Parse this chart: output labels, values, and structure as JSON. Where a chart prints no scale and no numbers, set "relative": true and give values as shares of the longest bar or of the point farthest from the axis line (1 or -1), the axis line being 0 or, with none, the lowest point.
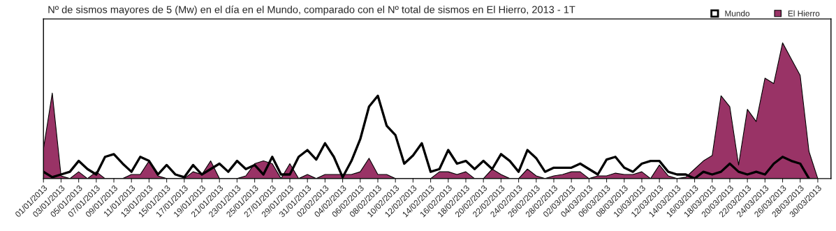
{
  "chart_data": {
    "type": "area",
    "title": "Nº de sismos mayores de 5 (Mw) en el día en el Mundo, comparado con el Nº total de sismos en El Hierro, 2013 - 1T",
    "relative": true,
    "legend": "top right",
    "grid": false,
    "categories": [
      "01/01/2013",
      null,
      "03/01/2013",
      null,
      "05/01/2013",
      null,
      "07/01/2013",
      null,
      "09/01/2013",
      null,
      "11/01/2013",
      null,
      "13/01/2013",
      null,
      "15/01/2013",
      null,
      "17/01/2013",
      null,
      "19/01/2013",
      null,
      "21/01/2013",
      null,
      "23/01/2013",
      null,
      "25/01/2013",
      null,
      "27/01/2013",
      null,
      "29/01/2013",
      null,
      "31/01/2013",
      null,
      "02/02/2013",
      null,
      "04/02/2013",
      null,
      "06/02/2013",
      null,
      "08/02/2013",
      null,
      "10/02/2013",
      null,
      "12/02/2013",
      null,
      "14/02/2013",
      null,
      "16/02/2013",
      null,
      "18/02/2013",
      null,
      "20/02/2013",
      null,
      "22/02/2013",
      null,
      "24/02/2013",
      null,
      "26/02/2013",
      null,
      "28/02/2013",
      null,
      "02/03/2013",
      null,
      "04/03/2013",
      null,
      "06/03/2013",
      null,
      "08/03/2013",
      null,
      "10/03/2013",
      null,
      "12/03/2013",
      null,
      "14/03/2013",
      null,
      "16/03/2013",
      null,
      "18/03/2013",
      null,
      "20/03/2013",
      null,
      "22/03/2013",
      null,
      "24/03/2013",
      null,
      "26/03/2013",
      null,
      "28/03/2013",
      null,
      "30/03/2013",
      null
    ],
    "series": [
      {
        "name": "El Hierro",
        "color": "#993366",
        "values": [
          0.22,
          0.63,
          0.02,
          0,
          0.05,
          0,
          0.05,
          0,
          0,
          0,
          0.03,
          0.03,
          0.13,
          0.02,
          0,
          0,
          0,
          0.05,
          0.03,
          0.13,
          0,
          0,
          0,
          0.02,
          0.11,
          0.13,
          0.11,
          0,
          0.11,
          0,
          0.03,
          0,
          0.03,
          0.03,
          0.03,
          0.03,
          0.05,
          0.15,
          0.03,
          0.03,
          0,
          0,
          0,
          0,
          0,
          0.05,
          0.05,
          0.03,
          0.05,
          0,
          0,
          0.07,
          0.03,
          0,
          0,
          0.07,
          0.02,
          0,
          0.02,
          0.03,
          0.05,
          0.05,
          0,
          0.02,
          0.02,
          0.04,
          0.03,
          0.03,
          0.05,
          0,
          0.1,
          0.02,
          0,
          0.01,
          0.07,
          0.13,
          0.17,
          0.61,
          0.53,
          0.1,
          0.51,
          0.42,
          0.74,
          0.7,
          1,
          0.88,
          0.76,
          0.2,
          0,
          null
        ]
      },
      {
        "name": "Mundo",
        "type": "line",
        "color": "#000000",
        "values": [
          0.05,
          0.01,
          0.03,
          0.05,
          0.13,
          0.07,
          0.03,
          0.16,
          0.18,
          0.11,
          0.05,
          0.16,
          0.13,
          0.03,
          0.1,
          0.03,
          0.01,
          0.1,
          0.03,
          0.07,
          0.11,
          0.05,
          0.13,
          0.07,
          0.1,
          0.03,
          0.16,
          0.03,
          0.03,
          0.16,
          0.21,
          0.14,
          0.26,
          0.16,
          0.01,
          0.13,
          0.29,
          0.53,
          0.61,
          0.39,
          0.32,
          0.11,
          0.17,
          0.26,
          0.05,
          0.07,
          0.21,
          0.11,
          0.13,
          0.07,
          0.13,
          0.07,
          0.18,
          0.13,
          0.05,
          0.21,
          0.15,
          0.05,
          0.08,
          0.08,
          0.08,
          0.11,
          0.07,
          0.03,
          0.14,
          0.16,
          0.08,
          0.05,
          0.11,
          0.13,
          0.13,
          0.05,
          0.03,
          0.03,
          0,
          0.05,
          0.03,
          0.05,
          0.11,
          0.05,
          0.03,
          0.05,
          0.03,
          0.11,
          0.16,
          0.13,
          0.11,
          0,
          null,
          null
        ]
      }
    ]
  }
}
